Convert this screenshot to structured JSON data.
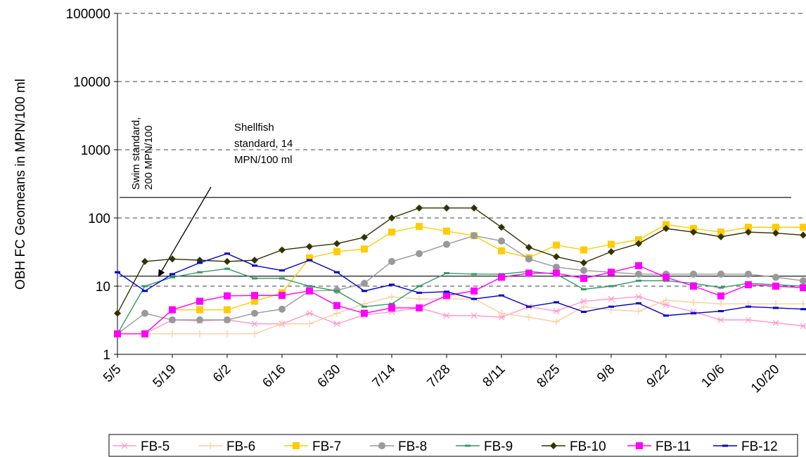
{
  "chart_data": {
    "type": "line",
    "y_label": "OBH FC Geomeans in MPN/100 ml",
    "log_scale_y": true,
    "grid": true,
    "legend": "bottom",
    "categories": [
      "5/5",
      null,
      "5/19",
      null,
      "6/2",
      null,
      "6/16",
      null,
      "6/30",
      null,
      "7/14",
      null,
      "7/28",
      null,
      "8/11",
      null,
      "8/25",
      null,
      "9/8",
      null,
      "9/22",
      null,
      "10/6",
      null,
      "10/20",
      null
    ],
    "ylim": [
      1,
      100000
    ],
    "yticks": [
      1,
      10,
      100,
      1000,
      10000,
      100000
    ],
    "reference_lines": [
      {
        "label": [
          "Swim standard,",
          "200 MPN/100"
        ],
        "value": 200,
        "color": "#000000"
      },
      {
        "label": [
          "Shellfish",
          "standard, 14",
          "MPN/100 ml"
        ],
        "value": 14,
        "color": "#000000"
      }
    ],
    "series": [
      {
        "name": "FB-5",
        "color": "#ff99cc",
        "marker": "star",
        "values": [
          2,
          2,
          3.2,
          3.1,
          3.2,
          2.8,
          2.8,
          4,
          2.8,
          3.8,
          4.2,
          4.8,
          3.7,
          3.7,
          3.5,
          5,
          4.3,
          6,
          6.5,
          7,
          5.3,
          4.2,
          3.2,
          3.2,
          2.9,
          2.6
        ]
      },
      {
        "name": "FB-6",
        "color": "#ffcc99",
        "marker": "plus",
        "values": [
          2,
          2,
          2,
          2,
          2,
          2,
          2.8,
          2.8,
          4,
          5.5,
          7,
          6.5,
          6.5,
          6.5,
          4,
          3.5,
          3,
          5,
          4.5,
          4.3,
          6.2,
          5.8,
          5.5,
          5.5,
          5.5,
          5.5
        ]
      },
      {
        "name": "FB-7",
        "color": "#ffcc00",
        "marker": "square",
        "values": [
          2,
          2,
          4.5,
          4.5,
          4.5,
          6,
          8,
          26,
          32,
          35,
          62,
          75,
          64,
          55,
          33,
          26,
          40,
          34,
          41,
          48,
          80,
          70,
          62,
          73,
          73,
          73
        ]
      },
      {
        "name": "FB-8",
        "color": "#999999",
        "marker": "circle",
        "values": [
          2,
          4,
          3.2,
          3.2,
          3.2,
          4,
          4.6,
          8.5,
          8.7,
          11,
          23,
          30,
          41,
          55,
          46,
          25,
          19,
          17,
          16,
          15,
          15,
          15,
          15,
          15,
          13.5,
          12
        ]
      },
      {
        "name": "FB-9",
        "color": "#339966",
        "marker": "dash",
        "values": [
          2,
          10,
          13.5,
          16,
          18,
          13,
          13,
          10,
          8.5,
          5,
          5.5,
          10,
          15.5,
          15,
          15,
          16.5,
          15,
          9,
          10,
          12,
          12,
          11,
          9.5,
          11,
          10.5,
          10
        ]
      },
      {
        "name": "FB-10",
        "color": "#333300",
        "marker": "diamond",
        "values": [
          4,
          23,
          25,
          24,
          23,
          24,
          34,
          38,
          42,
          52,
          100,
          140,
          140,
          140,
          73,
          37,
          27,
          22,
          32,
          42,
          70,
          62,
          53,
          62,
          60,
          56
        ]
      },
      {
        "name": "FB-11",
        "color": "#ff00ff",
        "marker": "square",
        "values": [
          2,
          2,
          4.5,
          6,
          7.2,
          7.3,
          7.3,
          8.5,
          5.2,
          4,
          4.8,
          4.8,
          7.3,
          8.5,
          13.5,
          15.5,
          15.5,
          13,
          16,
          20,
          13.5,
          10,
          7.2,
          10.5,
          10,
          9.5
        ]
      },
      {
        "name": "FB-12",
        "color": "#0000cc",
        "marker": "dash",
        "values": [
          16,
          8.5,
          15,
          22,
          30,
          20,
          17,
          24,
          16,
          8.5,
          10.5,
          8,
          8.3,
          6.5,
          7.3,
          5,
          5.8,
          4.2,
          5,
          5.6,
          3.7,
          4,
          4.3,
          5,
          4.8,
          4.6
        ]
      }
    ]
  }
}
